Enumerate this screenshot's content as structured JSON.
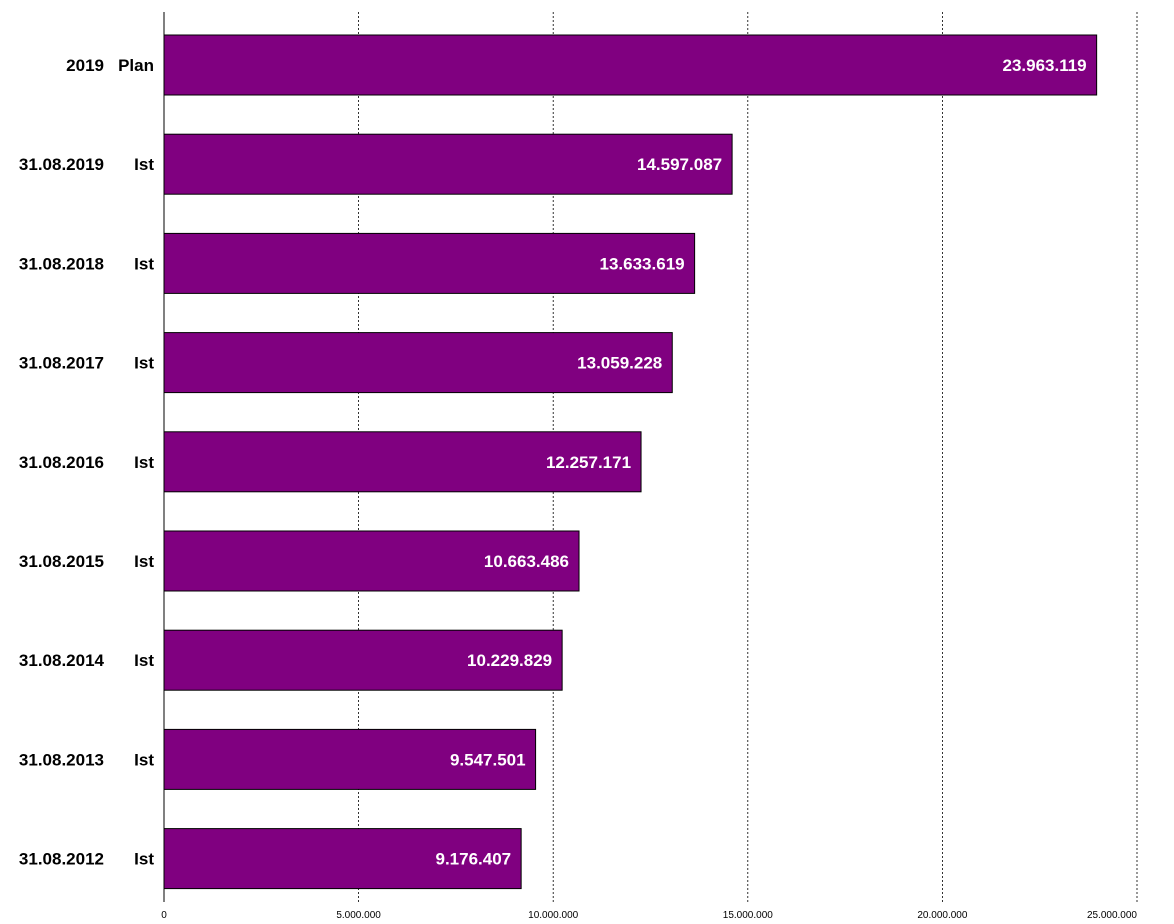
{
  "colors": {
    "bar": "#800080",
    "value_label": "#ffffff",
    "text": "#000000"
  },
  "chart_data": {
    "type": "bar",
    "orientation": "horizontal",
    "categories": [
      {
        "date": "2019",
        "kind": "Plan"
      },
      {
        "date": "31.08.2019",
        "kind": "Ist"
      },
      {
        "date": "31.08.2018",
        "kind": "Ist"
      },
      {
        "date": "31.08.2017",
        "kind": "Ist"
      },
      {
        "date": "31.08.2016",
        "kind": "Ist"
      },
      {
        "date": "31.08.2015",
        "kind": "Ist"
      },
      {
        "date": "31.08.2014",
        "kind": "Ist"
      },
      {
        "date": "31.08.2013",
        "kind": "Ist"
      },
      {
        "date": "31.08.2012",
        "kind": "Ist"
      }
    ],
    "values": [
      23963119,
      14597087,
      13633619,
      13059228,
      12257171,
      10663486,
      10229829,
      9547501,
      9176407
    ],
    "value_labels": [
      "23.963.119",
      "14.597.087",
      "13.633.619",
      "13.059.228",
      "12.257.171",
      "10.663.486",
      "10.229.829",
      "9.547.501",
      "9.176.407"
    ],
    "xlim": [
      0,
      25000000
    ],
    "x_ticks": [
      0,
      5000000,
      10000000,
      15000000,
      20000000,
      25000000
    ],
    "x_tick_labels": [
      "0",
      "5.000.000",
      "10.000.000",
      "15.000.000",
      "20.000.000",
      "25.000.000"
    ],
    "grid": "vertical dashed",
    "legend": "none"
  }
}
